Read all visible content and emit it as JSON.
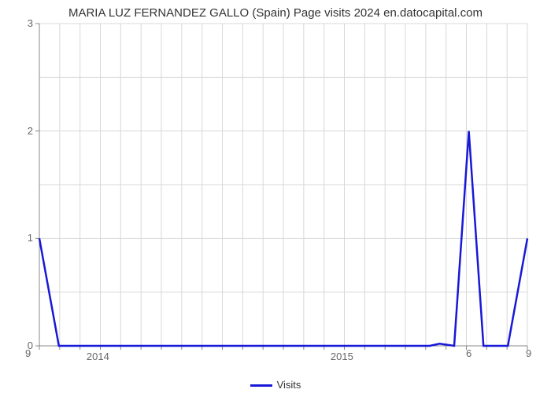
{
  "chart": {
    "type": "line",
    "title": "MARIA LUZ FERNANDEZ GALLO (Spain) Page visits 2024 en.datocapital.com",
    "title_fontsize": 15,
    "title_color": "#333333",
    "background_color": "#ffffff",
    "plot_border_color": "#888888",
    "grid_color": "#d8d8d8",
    "grid_width": 1,
    "line_color": "#1818d8",
    "line_width": 2.5,
    "ylim": [
      0,
      3
    ],
    "ytick_values": [
      0,
      1,
      2,
      3
    ],
    "ytick_labels": [
      "0",
      "1",
      "2",
      "3"
    ],
    "x_major_labels": [
      "2014",
      "2015"
    ],
    "x_major_positions": [
      0.12,
      0.62
    ],
    "x_minor_count": 24,
    "corner_labels": {
      "bottom_left": "9",
      "bottom_right_a": "6",
      "bottom_right_b": "9"
    },
    "legend": {
      "label": "Visits",
      "color": "#1818d8"
    },
    "data_points": [
      {
        "x": 0.0,
        "y": 1.0
      },
      {
        "x": 0.04,
        "y": 0.0
      },
      {
        "x": 0.8,
        "y": 0.0
      },
      {
        "x": 0.82,
        "y": 0.02
      },
      {
        "x": 0.85,
        "y": 0.0
      },
      {
        "x": 0.88,
        "y": 2.0
      },
      {
        "x": 0.91,
        "y": 0.0
      },
      {
        "x": 0.96,
        "y": 0.0
      },
      {
        "x": 1.0,
        "y": 1.0
      }
    ]
  }
}
